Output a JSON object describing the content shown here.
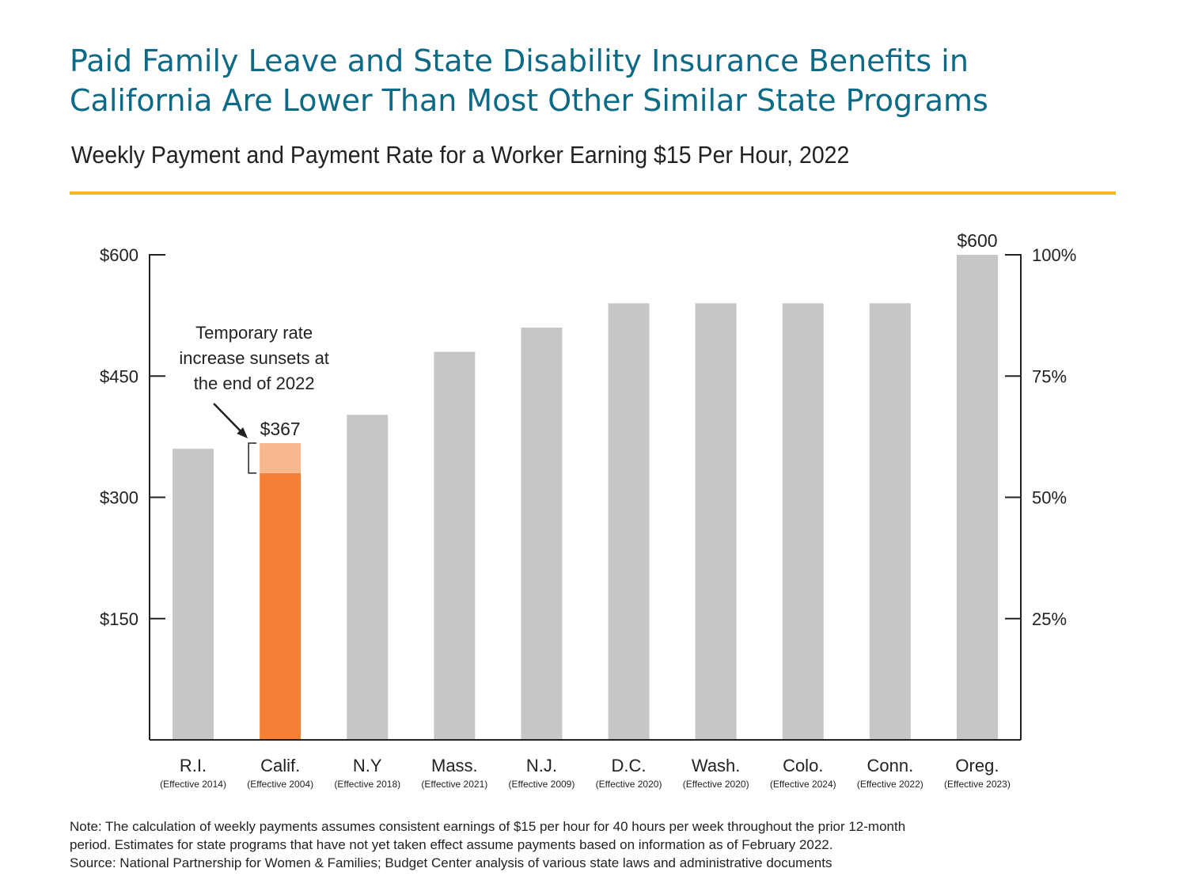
{
  "title_lines": [
    "Paid Family Leave and State Disability Insurance Benefits in",
    "California Are Lower Than Most Other Similar State Programs"
  ],
  "subtitle": "Weekly Payment and Payment Rate for a Worker Earning $15 Per Hour, 2022",
  "colors": {
    "title": "#0d6a87",
    "rule": "#f2b822",
    "bar_gray": "#c6c6c6",
    "bar_highlight": "#f47f35",
    "bar_temporary": "#f8b88e"
  },
  "chart_data": {
    "type": "bar",
    "categories": [
      "R.I.",
      "Calif.",
      "N.Y",
      "Mass.",
      "N.J.",
      "D.C.",
      "Wash.",
      "Colo.",
      "Conn.",
      "Oreg."
    ],
    "category_sublabels": [
      "(Effective 2014)",
      "(Effective 2004)",
      "(Effective 2018)",
      "(Effective 2021)",
      "(Effective 2009)",
      "(Effective 2020)",
      "(Effective 2020)",
      "(Effective 2024)",
      "(Effective 2022)",
      "(Effective 2023)"
    ],
    "values": [
      360,
      367,
      402,
      480,
      510,
      540,
      540,
      540,
      540,
      600
    ],
    "highlight_index": 1,
    "highlight_base_value": 330,
    "data_labels": [
      "",
      "$367",
      "",
      "",
      "",
      "",
      "",
      "",
      "",
      "$600"
    ],
    "ylim": [
      0,
      600
    ],
    "left_ticks": {
      "values": [
        150,
        300,
        450,
        600
      ],
      "labels": [
        "$150",
        "$300",
        "$450",
        "$600"
      ]
    },
    "right_ticks": {
      "values": [
        150,
        300,
        450,
        600
      ],
      "labels": [
        "25%",
        "50%",
        "75%",
        "100%"
      ]
    },
    "annotation": {
      "lines": [
        "Temporary rate",
        "increase sunsets at",
        "the end of 2022"
      ],
      "target_index": 1
    },
    "grid": false,
    "legend": "none"
  },
  "footer_lines": [
    "Note: The calculation of weekly payments assumes consistent earnings of $15 per hour for 40 hours per week throughout the prior 12-month",
    "period. Estimates for state programs that have not yet taken effect assume payments based on information as of February 2022.",
    "Source: National Partnership for Women & Families; Budget Center analysis of various state laws and administrative documents"
  ]
}
